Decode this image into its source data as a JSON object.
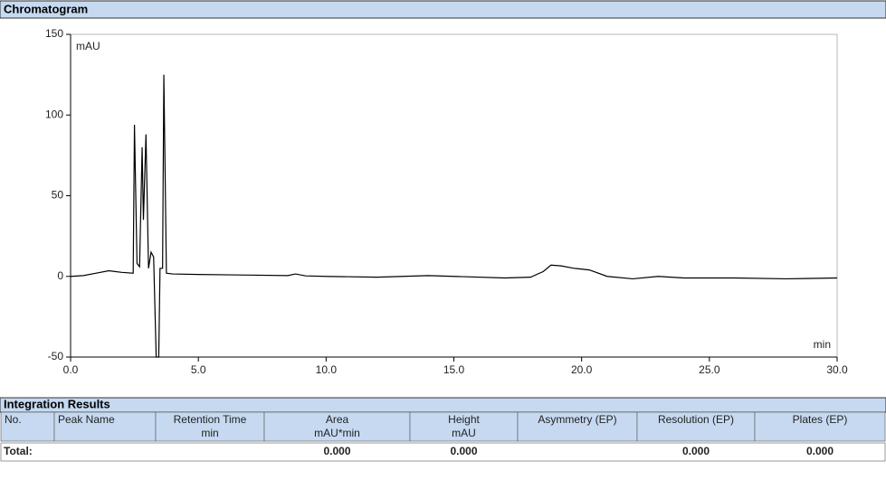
{
  "chart_data": {
    "type": "line",
    "title": "Chromatogram",
    "y_label": "mAU",
    "x_label": "min",
    "x": [
      0,
      0.5,
      1,
      1.5,
      2,
      2.45,
      2.5,
      2.6,
      2.7,
      2.8,
      2.85,
      2.95,
      3.05,
      3.15,
      3.25,
      3.35,
      3.45,
      3.5,
      3.6,
      3.65,
      3.75,
      4,
      5,
      7,
      8.5,
      8.8,
      9.2,
      10,
      12,
      14,
      15,
      17,
      18,
      18.5,
      18.8,
      19.2,
      19.7,
      20.3,
      21,
      22,
      23,
      24,
      26,
      28,
      30
    ],
    "series": [
      {
        "color": "#000000",
        "values": [
          0,
          0.5,
          2,
          3.5,
          2.5,
          2,
          94,
          8,
          6,
          80,
          35,
          88,
          5,
          15,
          12,
          -50,
          -50,
          5,
          5,
          125,
          2,
          1.5,
          1.2,
          0.8,
          0.5,
          1.5,
          0.3,
          0,
          -0.5,
          0.5,
          0,
          -1,
          -0.5,
          3,
          7,
          6.5,
          5,
          4,
          0,
          -1.5,
          0,
          -1,
          -1,
          -1.5,
          -1
        ]
      }
    ],
    "xlim": [
      0,
      30
    ],
    "ylim": [
      -50,
      150
    ],
    "xticks": [
      {
        "value": 0,
        "label": "0.0"
      },
      {
        "value": 5,
        "label": "5.0"
      },
      {
        "value": 10,
        "label": "10.0"
      },
      {
        "value": 15,
        "label": "15.0"
      },
      {
        "value": 20,
        "label": "20.0"
      },
      {
        "value": 25,
        "label": "25.0"
      },
      {
        "value": 30,
        "label": "30.0"
      }
    ],
    "yticks": [
      -50,
      0,
      50,
      100,
      150
    ]
  },
  "results": {
    "title": "Integration Results",
    "columns": [
      {
        "title": "No."
      },
      {
        "title": "Peak Name"
      },
      {
        "title": "Retention Time",
        "unit": "min"
      },
      {
        "title": "Area",
        "unit": "mAU*min"
      },
      {
        "title": "Height",
        "unit": "mAU"
      },
      {
        "title": "Asymmetry (EP)"
      },
      {
        "title": "Resolution (EP)"
      },
      {
        "title": "Plates (EP)"
      }
    ],
    "total": {
      "label": "Total:",
      "area": "0.000",
      "height": "0.000",
      "resolution": "0.000",
      "plates": "0.000"
    }
  }
}
